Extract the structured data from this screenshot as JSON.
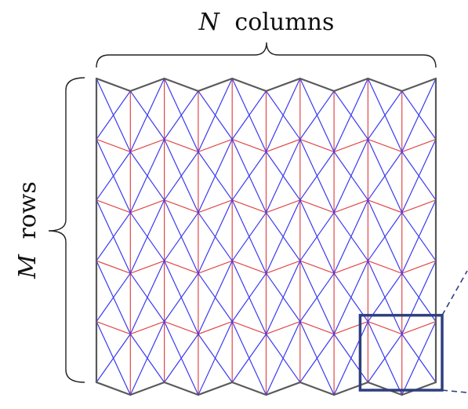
{
  "labels": {
    "columns_var": "N",
    "columns_word": "columns",
    "rows_var": "M",
    "rows_word": "rows"
  },
  "pattern": {
    "columns": 10,
    "rows": 5,
    "highlight": {
      "start_column": 8,
      "start_row": 4,
      "span_columns": 2,
      "span_rows": 1
    }
  },
  "colors": {
    "boundary": "#5a5a5a",
    "mountain": "#3a3af0",
    "valley": "#e04848",
    "highlight": "#2e3f7f",
    "brace": "#222222"
  }
}
